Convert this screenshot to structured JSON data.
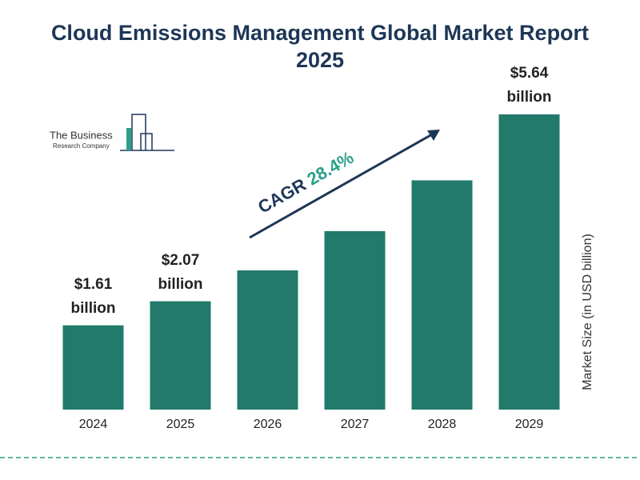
{
  "chart_data": {
    "type": "bar",
    "title": "Cloud Emissions Management Global Market Report 2025",
    "categories": [
      "2024",
      "2025",
      "2026",
      "2027",
      "2028",
      "2029"
    ],
    "values": [
      1.61,
      2.07,
      2.66,
      3.41,
      4.38,
      5.64
    ],
    "value_labels": [
      "$1.61 billion",
      "$2.07 billion",
      null,
      null,
      null,
      "$5.64 billion"
    ],
    "color": "#217a6a",
    "y_axis_label": "Market Size (in USD billion)",
    "cagr_label": "CAGR",
    "cagr_value": "28.4%",
    "logo_line1": "The Business",
    "logo_line2": "Research Company"
  }
}
